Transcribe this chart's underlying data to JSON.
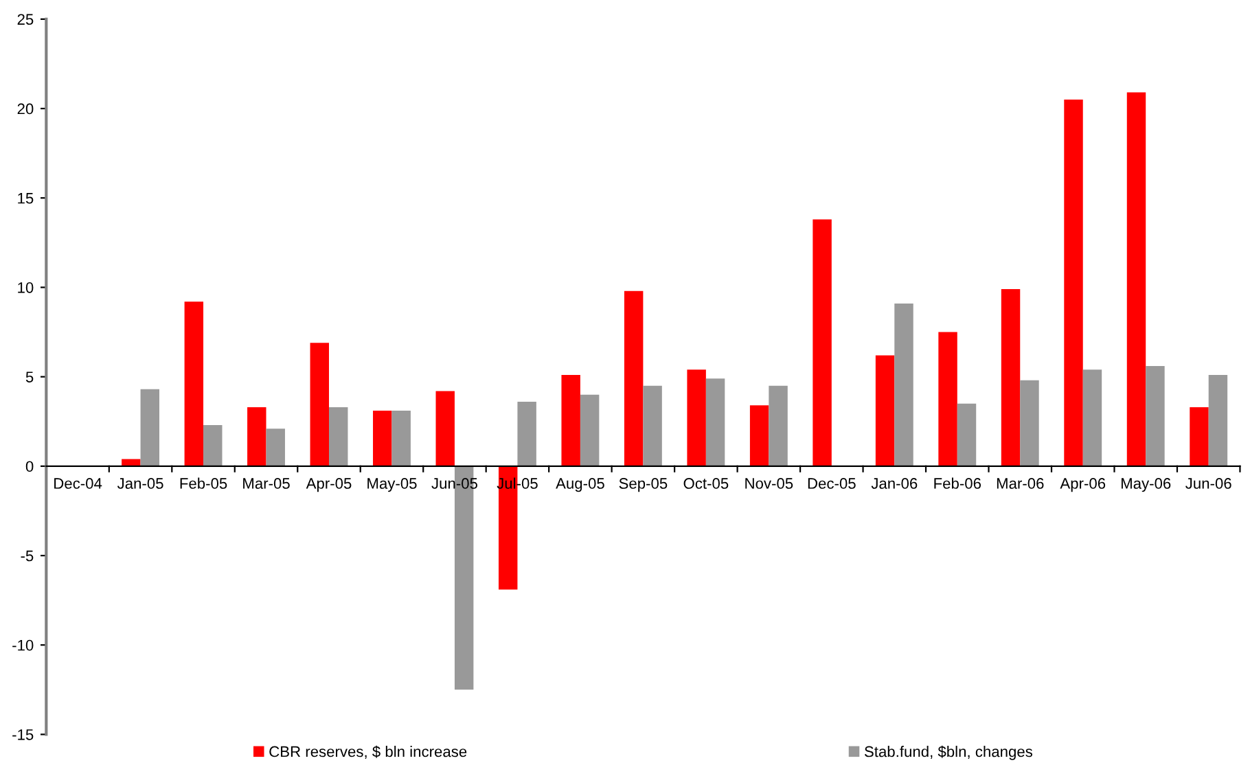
{
  "chart_data": {
    "type": "bar",
    "categories": [
      "Dec-04",
      "Jan-05",
      "Feb-05",
      "Mar-05",
      "Apr-05",
      "May-05",
      "Jun-05",
      "Jul-05",
      "Aug-05",
      "Sep-05",
      "Oct-05",
      "Nov-05",
      "Dec-05",
      "Jan-06",
      "Feb-06",
      "Mar-06",
      "Apr-06",
      "May-06",
      "Jun-06"
    ],
    "series": [
      {
        "name": "CBR reserves, $ bln increase",
        "color": "#ff0000",
        "values": [
          0,
          0.4,
          9.2,
          3.3,
          6.9,
          3.1,
          4.2,
          -6.9,
          5.1,
          9.8,
          5.4,
          3.4,
          13.8,
          6.2,
          7.5,
          9.9,
          20.5,
          20.9,
          3.3
        ]
      },
      {
        "name": "Stab.fund, $bln, changes",
        "color": "#999999",
        "values": [
          0,
          4.3,
          2.3,
          2.1,
          3.3,
          3.1,
          -12.5,
          3.6,
          4.0,
          4.5,
          4.9,
          4.5,
          0,
          9.1,
          3.5,
          4.8,
          5.4,
          5.6,
          5.1
        ]
      }
    ],
    "ylim": [
      -15,
      25
    ],
    "yticks": [
      -15,
      -10,
      -5,
      0,
      5,
      10,
      15,
      20,
      25
    ],
    "grid": false,
    "legend": "bottom"
  }
}
